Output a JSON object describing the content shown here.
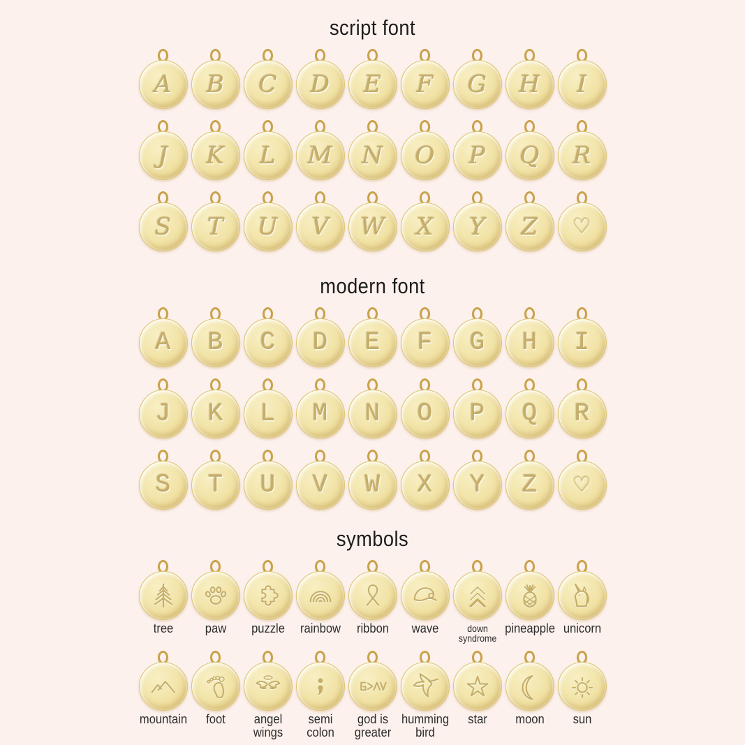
{
  "palette": {
    "background": "#fcf1ed",
    "title-ink": "#1c1c1c",
    "label-ink": "#2d2d2d",
    "disc-light": "#f8efc4",
    "disc-mid": "#f1e2a4",
    "disc-deep": "#ecd998",
    "disc-edge": "#dfc573",
    "ring": "#c9a24a",
    "engrave": "#c6ae69"
  },
  "sections": {
    "script": {
      "title": "script font",
      "rows": [
        [
          "A",
          "B",
          "C",
          "D",
          "E",
          "F",
          "G",
          "H",
          "I"
        ],
        [
          "J",
          "K",
          "L",
          "M",
          "N",
          "O",
          "P",
          "Q",
          "R"
        ],
        [
          "S",
          "T",
          "U",
          "V",
          "W",
          "X",
          "Y",
          "Z",
          "♡"
        ]
      ]
    },
    "modern": {
      "title": "modern font",
      "rows": [
        [
          "A",
          "B",
          "C",
          "D",
          "E",
          "F",
          "G",
          "H",
          "I"
        ],
        [
          "J",
          "K",
          "L",
          "M",
          "N",
          "O",
          "P",
          "Q",
          "R"
        ],
        [
          "S",
          "T",
          "U",
          "V",
          "W",
          "X",
          "Y",
          "Z",
          "♡"
        ]
      ]
    },
    "symbols": {
      "title": "symbols",
      "rows": [
        [
          {
            "icon": "tree-icon",
            "label": "tree"
          },
          {
            "icon": "paw-icon",
            "label": "paw"
          },
          {
            "icon": "puzzle-icon",
            "label": "puzzle"
          },
          {
            "icon": "rainbow-icon",
            "label": "rainbow"
          },
          {
            "icon": "ribbon-icon",
            "label": "ribbon"
          },
          {
            "icon": "wave-icon",
            "label": "wave"
          },
          {
            "icon": "down-syndrome-icon",
            "label": "down\nsyndrome",
            "small": true
          },
          {
            "icon": "pineapple-icon",
            "label": "pineapple"
          },
          {
            "icon": "unicorn-icon",
            "label": "unicorn"
          }
        ],
        [
          {
            "icon": "mountain-icon",
            "label": "mountain"
          },
          {
            "icon": "foot-icon",
            "label": "foot"
          },
          {
            "icon": "angel-wings-icon",
            "label": "angel\nwings"
          },
          {
            "icon": "semicolon-icon",
            "label": "semi\ncolon"
          },
          {
            "icon": "god-is-greater-icon",
            "label": "god is\ngreater"
          },
          {
            "icon": "hummingbird-icon",
            "label": "humming\nbird"
          },
          {
            "icon": "star-icon",
            "label": "star"
          },
          {
            "icon": "moon-icon",
            "label": "moon"
          },
          {
            "icon": "sun-icon",
            "label": "sun"
          }
        ]
      ]
    }
  }
}
